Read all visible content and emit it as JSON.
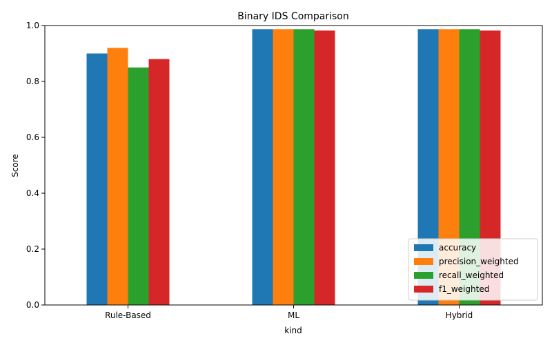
{
  "chart_data": {
    "type": "bar",
    "title": "Binary IDS Comparison",
    "xlabel": "kind",
    "ylabel": "Score",
    "ylim": [
      0,
      1
    ],
    "yticks": [
      "0.0",
      "0.2",
      "0.4",
      "0.6",
      "0.8",
      "1.0"
    ],
    "categories": [
      "Rule-Based",
      "ML",
      "Hybrid"
    ],
    "series": [
      {
        "name": "accuracy",
        "color": "#1f77b4",
        "values": [
          0.9,
          0.987,
          0.987
        ]
      },
      {
        "name": "precision_weighted",
        "color": "#ff7f0e",
        "values": [
          0.92,
          0.987,
          0.987
        ]
      },
      {
        "name": "recall_weighted",
        "color": "#2ca02c",
        "values": [
          0.85,
          0.987,
          0.987
        ]
      },
      {
        "name": "f1_weighted",
        "color": "#d62728",
        "values": [
          0.88,
          0.982,
          0.982
        ]
      }
    ],
    "grid": false,
    "legend_position": "lower-right"
  }
}
